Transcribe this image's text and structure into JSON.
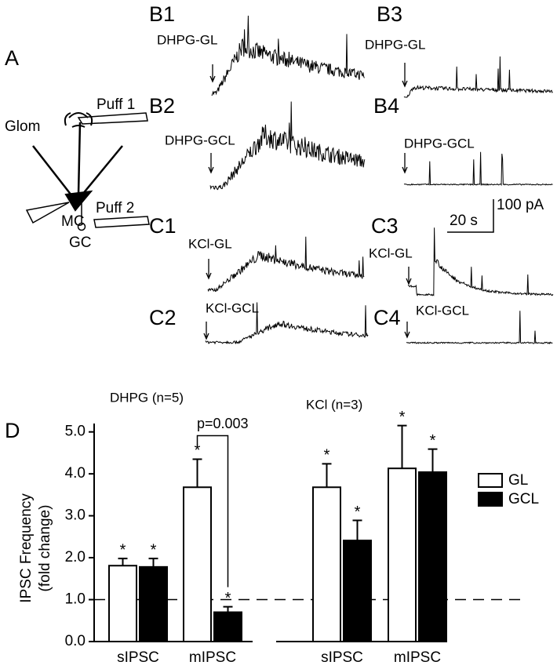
{
  "diagram": {
    "label": "A",
    "glom": "Glom",
    "puff1": "Puff 1",
    "mc": "MC",
    "puff2": "Puff 2",
    "gc": "GC"
  },
  "traces": [
    {
      "label": "B1",
      "stimulus": "DHPG-GL"
    },
    {
      "label": "B2",
      "stimulus": "DHPG-GCL"
    },
    {
      "label": "B3",
      "stimulus": "DHPG-GL"
    },
    {
      "label": "B4",
      "stimulus": "DHPG-GCL"
    },
    {
      "label": "C1",
      "stimulus": "KCl-GL"
    },
    {
      "label": "C2",
      "stimulus": "KCl-GCL"
    },
    {
      "label": "C3",
      "stimulus": "KCl-GL"
    },
    {
      "label": "C4",
      "stimulus": "KCl-GCL"
    }
  ],
  "scale_bar": {
    "time": "20 s",
    "current": "100 pA"
  },
  "chart_data": [
    {
      "type": "bar",
      "panel_label": "D",
      "title": "DHPG (n=5)",
      "ylabel": "IPSC Frequency",
      "ylabel2": "(fold change)",
      "categories": [
        "sIPSC",
        "mIPSC"
      ],
      "series": [
        {
          "name": "GL",
          "color": "#ffffff",
          "values": [
            1.81,
            3.68
          ],
          "errors": [
            0.17,
            0.67
          ],
          "markers": [
            "*",
            "*"
          ]
        },
        {
          "name": "GCL",
          "color": "#000000",
          "values": [
            1.78,
            0.7
          ],
          "errors": [
            0.2,
            0.13
          ],
          "markers": [
            "*",
            "*"
          ]
        }
      ],
      "annotation": "p=0.003",
      "reference_line": 1.0,
      "ylim": [
        0,
        5.2
      ],
      "yticks": [
        {
          "value": 0,
          "label": "0.0"
        },
        {
          "value": 1,
          "label": "1.0"
        },
        {
          "value": 2,
          "label": "2.0"
        },
        {
          "value": 3,
          "label": "3.0"
        },
        {
          "value": 4,
          "label": "4.0"
        },
        {
          "value": 5,
          "label": "5.0"
        }
      ]
    },
    {
      "type": "bar",
      "title": "KCl (n=3)",
      "categories": [
        "sIPSC",
        "mIPSC"
      ],
      "series": [
        {
          "name": "GL",
          "color": "#ffffff",
          "values": [
            3.68,
            4.13
          ],
          "errors": [
            0.56,
            1.02
          ],
          "markers": [
            "*",
            "*"
          ]
        },
        {
          "name": "GCL",
          "color": "#000000",
          "values": [
            2.41,
            4.04
          ],
          "errors": [
            0.48,
            0.55
          ],
          "markers": [
            "*",
            "*"
          ]
        }
      ],
      "legend": "upper right",
      "ylim": [
        0,
        5.2
      ]
    }
  ]
}
